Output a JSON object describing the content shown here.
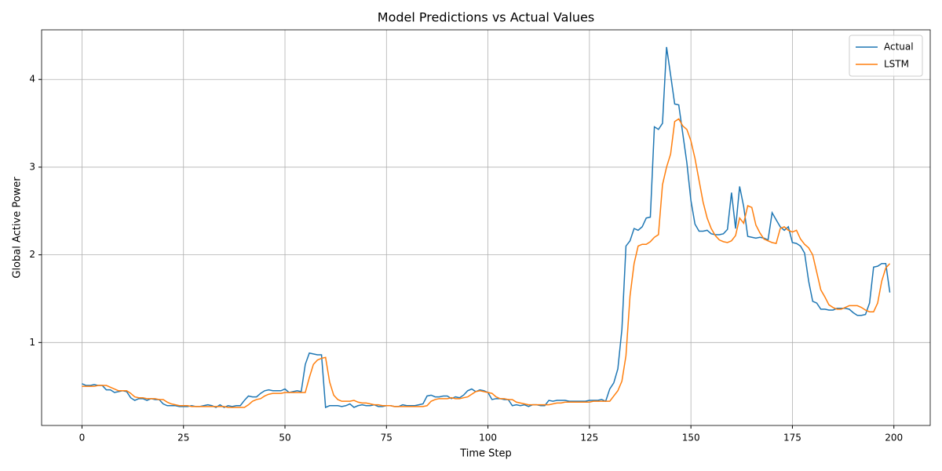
{
  "chart_data": {
    "type": "line",
    "title": "Model Predictions vs Actual Values",
    "x_label": "Time Step",
    "y_label": "Global Active Power",
    "x": [
      0,
      1,
      2,
      3,
      4,
      5,
      6,
      7,
      8,
      9,
      10,
      11,
      12,
      13,
      14,
      15,
      16,
      17,
      18,
      19,
      20,
      21,
      22,
      23,
      24,
      25,
      26,
      27,
      28,
      29,
      30,
      31,
      32,
      33,
      34,
      35,
      36,
      37,
      38,
      39,
      40,
      41,
      42,
      43,
      44,
      45,
      46,
      47,
      48,
      49,
      50,
      51,
      52,
      53,
      54,
      55,
      56,
      57,
      58,
      59,
      60,
      61,
      62,
      63,
      64,
      65,
      66,
      67,
      68,
      69,
      70,
      71,
      72,
      73,
      74,
      75,
      76,
      77,
      78,
      79,
      80,
      81,
      82,
      83,
      84,
      85,
      86,
      87,
      88,
      89,
      90,
      91,
      92,
      93,
      94,
      95,
      96,
      97,
      98,
      99,
      100,
      101,
      102,
      103,
      104,
      105,
      106,
      107,
      108,
      109,
      110,
      111,
      112,
      113,
      114,
      115,
      116,
      117,
      118,
      119,
      120,
      121,
      122,
      123,
      124,
      125,
      126,
      127,
      128,
      129,
      130,
      131,
      132,
      133,
      134,
      135,
      136,
      137,
      138,
      139,
      140,
      141,
      142,
      143,
      144,
      145,
      146,
      147,
      148,
      149,
      150,
      151,
      152,
      153,
      154,
      155,
      156,
      157,
      158,
      159,
      160,
      161,
      162,
      163,
      164,
      165,
      166,
      167,
      168,
      169,
      170,
      171,
      172,
      173,
      174,
      175,
      176,
      177,
      178,
      179,
      180,
      181,
      182,
      183,
      184,
      185,
      186,
      187,
      188,
      189,
      190,
      191,
      192,
      193,
      194,
      195,
      196,
      197,
      198,
      199
    ],
    "series": [
      {
        "name": "Actual",
        "color": "#1f77b4",
        "values": [
          0.53,
          0.51,
          0.51,
          0.52,
          0.51,
          0.51,
          0.46,
          0.46,
          0.43,
          0.44,
          0.45,
          0.44,
          0.37,
          0.34,
          0.36,
          0.36,
          0.34,
          0.36,
          0.35,
          0.35,
          0.3,
          0.28,
          0.28,
          0.28,
          0.27,
          0.27,
          0.27,
          0.28,
          0.27,
          0.27,
          0.28,
          0.29,
          0.28,
          0.26,
          0.29,
          0.26,
          0.28,
          0.27,
          0.28,
          0.28,
          0.34,
          0.39,
          0.38,
          0.38,
          0.42,
          0.45,
          0.46,
          0.45,
          0.45,
          0.45,
          0.47,
          0.43,
          0.44,
          0.45,
          0.44,
          0.75,
          0.88,
          0.87,
          0.86,
          0.86,
          0.26,
          0.28,
          0.28,
          0.28,
          0.27,
          0.28,
          0.3,
          0.26,
          0.28,
          0.29,
          0.28,
          0.28,
          0.29,
          0.27,
          0.27,
          0.28,
          0.28,
          0.27,
          0.27,
          0.29,
          0.28,
          0.28,
          0.28,
          0.29,
          0.3,
          0.39,
          0.4,
          0.38,
          0.38,
          0.39,
          0.39,
          0.36,
          0.38,
          0.37,
          0.4,
          0.45,
          0.47,
          0.44,
          0.46,
          0.45,
          0.43,
          0.35,
          0.36,
          0.36,
          0.35,
          0.35,
          0.28,
          0.29,
          0.28,
          0.29,
          0.27,
          0.29,
          0.29,
          0.28,
          0.28,
          0.34,
          0.33,
          0.34,
          0.34,
          0.34,
          0.33,
          0.33,
          0.33,
          0.33,
          0.33,
          0.34,
          0.34,
          0.34,
          0.35,
          0.33,
          0.47,
          0.54,
          0.7,
          1.15,
          2.1,
          2.16,
          2.3,
          2.28,
          2.32,
          2.42,
          2.43,
          3.46,
          3.43,
          3.5,
          4.37,
          4.05,
          3.72,
          3.71,
          3.38,
          3.05,
          2.62,
          2.35,
          2.27,
          2.27,
          2.28,
          2.24,
          2.23,
          2.23,
          2.24,
          2.29,
          2.71,
          2.3,
          2.78,
          2.55,
          2.21,
          2.2,
          2.19,
          2.2,
          2.19,
          2.17,
          2.48,
          2.4,
          2.32,
          2.28,
          2.32,
          2.14,
          2.13,
          2.1,
          2.02,
          1.7,
          1.47,
          1.45,
          1.38,
          1.38,
          1.37,
          1.37,
          1.39,
          1.39,
          1.39,
          1.38,
          1.34,
          1.31,
          1.31,
          1.32,
          1.45,
          1.86,
          1.87,
          1.9,
          1.9,
          1.57
        ]
      },
      {
        "name": "LSTM",
        "color": "#ff7f0e",
        "values": [
          0.5,
          0.5,
          0.5,
          0.5,
          0.51,
          0.51,
          0.51,
          0.49,
          0.47,
          0.45,
          0.45,
          0.45,
          0.42,
          0.38,
          0.37,
          0.37,
          0.36,
          0.36,
          0.36,
          0.35,
          0.35,
          0.32,
          0.3,
          0.29,
          0.28,
          0.28,
          0.28,
          0.27,
          0.27,
          0.27,
          0.27,
          0.27,
          0.27,
          0.27,
          0.27,
          0.27,
          0.26,
          0.26,
          0.26,
          0.26,
          0.26,
          0.29,
          0.33,
          0.35,
          0.36,
          0.39,
          0.41,
          0.42,
          0.42,
          0.42,
          0.43,
          0.43,
          0.43,
          0.43,
          0.43,
          0.43,
          0.6,
          0.75,
          0.8,
          0.82,
          0.83,
          0.55,
          0.4,
          0.35,
          0.33,
          0.33,
          0.33,
          0.34,
          0.32,
          0.31,
          0.31,
          0.3,
          0.29,
          0.29,
          0.28,
          0.28,
          0.28,
          0.27,
          0.27,
          0.27,
          0.27,
          0.27,
          0.27,
          0.27,
          0.27,
          0.28,
          0.33,
          0.35,
          0.36,
          0.36,
          0.36,
          0.37,
          0.36,
          0.36,
          0.37,
          0.38,
          0.41,
          0.44,
          0.45,
          0.44,
          0.43,
          0.42,
          0.38,
          0.36,
          0.36,
          0.35,
          0.35,
          0.32,
          0.31,
          0.3,
          0.29,
          0.29,
          0.29,
          0.29,
          0.29,
          0.29,
          0.3,
          0.31,
          0.31,
          0.32,
          0.32,
          0.32,
          0.32,
          0.32,
          0.32,
          0.32,
          0.33,
          0.33,
          0.33,
          0.33,
          0.33,
          0.39,
          0.45,
          0.56,
          0.85,
          1.53,
          1.9,
          2.1,
          2.12,
          2.12,
          2.15,
          2.2,
          2.23,
          2.8,
          3.0,
          3.15,
          3.52,
          3.55,
          3.47,
          3.43,
          3.3,
          3.1,
          2.85,
          2.6,
          2.42,
          2.3,
          2.22,
          2.17,
          2.15,
          2.14,
          2.16,
          2.22,
          2.42,
          2.36,
          2.56,
          2.54,
          2.34,
          2.25,
          2.18,
          2.16,
          2.14,
          2.13,
          2.3,
          2.32,
          2.28,
          2.26,
          2.28,
          2.18,
          2.12,
          2.08,
          2.0,
          1.8,
          1.6,
          1.52,
          1.43,
          1.4,
          1.38,
          1.38,
          1.4,
          1.42,
          1.42,
          1.42,
          1.4,
          1.37,
          1.35,
          1.35,
          1.45,
          1.7,
          1.85,
          1.9
        ]
      }
    ],
    "xlim": [
      -9.95,
      208.95
    ],
    "ylim": [
      0.054,
      4.566
    ],
    "xticks": [
      0,
      25,
      50,
      75,
      100,
      125,
      150,
      175,
      200
    ],
    "yticks": [
      1,
      2,
      3,
      4
    ],
    "grid": true,
    "legend": "upper right"
  }
}
